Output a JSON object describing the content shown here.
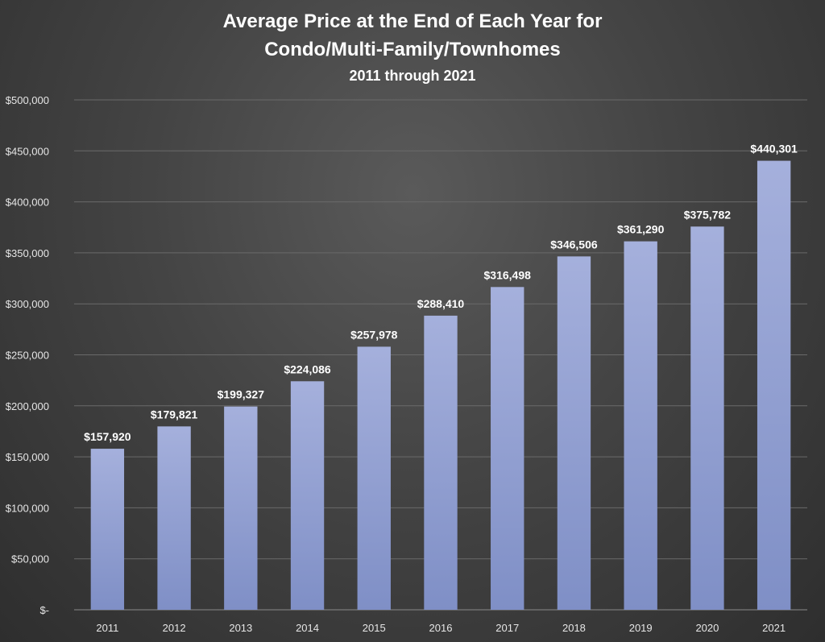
{
  "chart_data": {
    "type": "bar",
    "title": "Average Price at the End of Each Year for",
    "title_line2": "Condo/Multi-Family/Townhomes",
    "subtitle": "2011 through 2021",
    "xlabel": "",
    "ylabel": "",
    "categories": [
      "2011",
      "2012",
      "2013",
      "2014",
      "2015",
      "2016",
      "2017",
      "2018",
      "2019",
      "2020",
      "2021"
    ],
    "values": [
      157920,
      179821,
      199327,
      224086,
      257978,
      288410,
      316498,
      346506,
      361290,
      375782,
      440301
    ],
    "data_labels": [
      "$157,920",
      "$179,821",
      "$199,327",
      "$224,086",
      "$257,978",
      "$288,410",
      "$316,498",
      "$346,506",
      "$361,290",
      "$375,782",
      "$440,301"
    ],
    "ylim": [
      0,
      500000
    ],
    "yticks": [
      0,
      50000,
      100000,
      150000,
      200000,
      250000,
      300000,
      350000,
      400000,
      450000,
      500000
    ],
    "ytick_labels": [
      "$-",
      "$50,000",
      "$100,000",
      "$150,000",
      "$200,000",
      "$250,000",
      "$300,000",
      "$350,000",
      "$400,000",
      "$450,000",
      "$500,000"
    ],
    "grid": true,
    "legend": "none",
    "colors": {
      "bar_top": "#a5b0dc",
      "bar_bottom": "#7f8fc6",
      "background": "#444444",
      "text": "#ffffff"
    }
  }
}
